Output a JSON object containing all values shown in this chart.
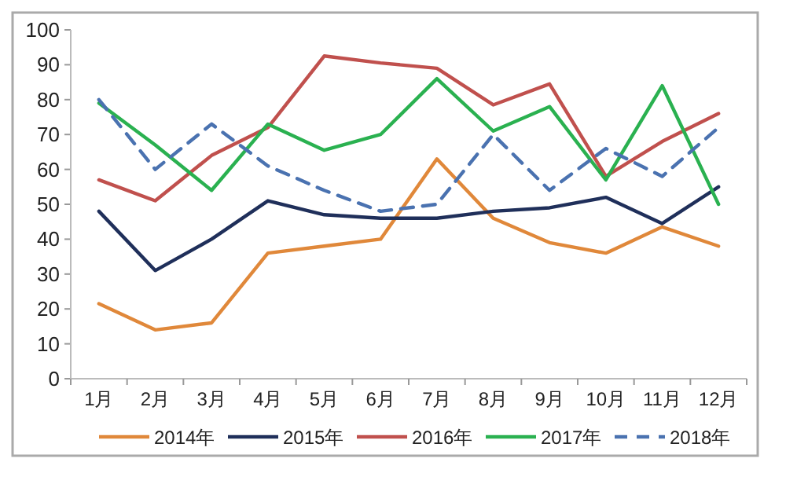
{
  "chart_data": {
    "type": "line",
    "categories": [
      "1月",
      "2月",
      "3月",
      "4月",
      "5月",
      "6月",
      "7月",
      "8月",
      "9月",
      "10月",
      "11月",
      "12月"
    ],
    "series": [
      {
        "name": "2014年",
        "color": "#e0883a",
        "line_style": "solid",
        "values": [
          21.5,
          14,
          16,
          36,
          38,
          40,
          63,
          46,
          39,
          36,
          43.5,
          38
        ]
      },
      {
        "name": "2015年",
        "color": "#1f2f5a",
        "line_style": "solid",
        "values": [
          48,
          31,
          40,
          51,
          47,
          46,
          46,
          48,
          49,
          52,
          44.5,
          55
        ]
      },
      {
        "name": "2016年",
        "color": "#c0504d",
        "line_style": "solid",
        "values": [
          57,
          51,
          64,
          72,
          92.5,
          90.5,
          89,
          78.5,
          84.5,
          58,
          68,
          76
        ]
      },
      {
        "name": "2017年",
        "color": "#2ab150",
        "line_style": "solid",
        "values": [
          79,
          67,
          54,
          73,
          65.5,
          70,
          86,
          71,
          78,
          57,
          84,
          50
        ]
      },
      {
        "name": "2018年",
        "color": "#4a72b0",
        "line_style": "dashed",
        "values": [
          80,
          60,
          73,
          61,
          54,
          48,
          50,
          70,
          54,
          66,
          58,
          72
        ]
      }
    ],
    "ylim": [
      0,
      100
    ],
    "yticks": [
      0,
      10,
      20,
      30,
      40,
      50,
      60,
      70,
      80,
      90,
      100
    ],
    "legend": "bottom"
  }
}
